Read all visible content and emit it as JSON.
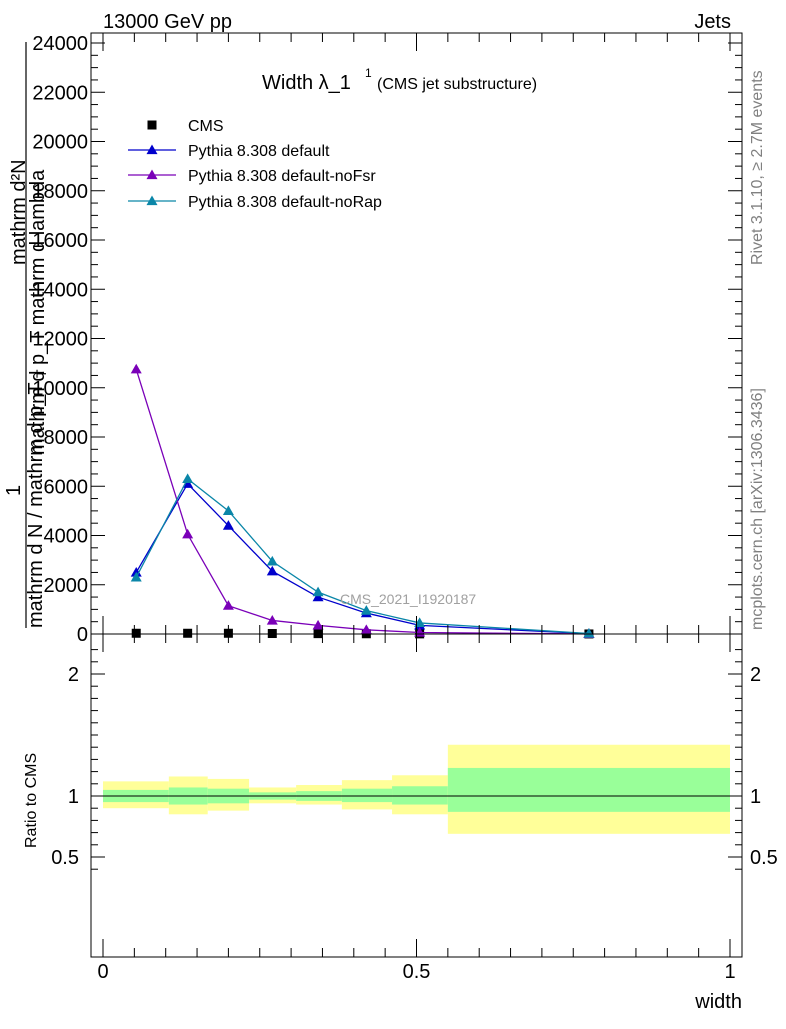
{
  "header": {
    "left": "13000 GeV pp",
    "right": "Jets"
  },
  "side_labels": {
    "rivet": "Rivet 3.1.10, ≥ 2.7M events",
    "mcplots": "mcplots.cern.ch [arXiv:1306.3436]"
  },
  "chart_data": [
    {
      "type": "line",
      "title_main": "Width λ_1",
      "title_sup": "1",
      "title_sub": "(CMS jet substructure)",
      "watermark": "CMS_2021_I1920187",
      "ylabel_top": "mathrm d²N",
      "ylabel_top2": "mathrm d p_T mathrm d lambda",
      "ylabel_frac_num": "1",
      "ylabel_frac_den": "mathrm d N / mathrm d p_T",
      "ylabel_sub": "T",
      "xlim": [
        0,
        1
      ],
      "ylim": [
        0,
        24000
      ],
      "yticks": [
        {
          "v": 0,
          "label": "0"
        },
        {
          "v": 2000,
          "label": "2000"
        },
        {
          "v": 4000,
          "label": "4000"
        },
        {
          "v": 6000,
          "label": "6000"
        },
        {
          "v": 8000,
          "label": "8000"
        },
        {
          "v": 10000,
          "label": "10000"
        },
        {
          "v": 12000,
          "label": "12000"
        },
        {
          "v": 14000,
          "label": "14000"
        },
        {
          "v": 16000,
          "label": "16000"
        },
        {
          "v": 18000,
          "label": "18000"
        },
        {
          "v": 20000,
          "label": "20000"
        },
        {
          "v": 22000,
          "label": "22000"
        },
        {
          "v": 24000,
          "label": "24000"
        }
      ],
      "legend_position": "top-left",
      "series": [
        {
          "name": "CMS",
          "marker": "square",
          "color": "#000000",
          "line": false,
          "x": [
            0.053,
            0.135,
            0.2,
            0.27,
            0.343,
            0.42,
            0.505,
            0.775
          ],
          "y": [
            30,
            30,
            30,
            20,
            15,
            10,
            5,
            2
          ]
        },
        {
          "name": "Pythia 8.308 default",
          "marker": "triangle",
          "color": "#0000cc",
          "line": true,
          "x": [
            0.053,
            0.135,
            0.2,
            0.27,
            0.343,
            0.42,
            0.505,
            0.775
          ],
          "y": [
            2500,
            6100,
            4400,
            2550,
            1500,
            850,
            350,
            15
          ]
        },
        {
          "name": "Pythia 8.308 default-noFsr",
          "marker": "triangle",
          "color": "#7a00b8",
          "line": true,
          "x": [
            0.053,
            0.135,
            0.2,
            0.27,
            0.343,
            0.42,
            0.505,
            0.775
          ],
          "y": [
            10750,
            4050,
            1150,
            550,
            350,
            170,
            60,
            3
          ]
        },
        {
          "name": "Pythia 8.308 default-noRap",
          "marker": "triangle",
          "color": "#0a86a8",
          "line": true,
          "x": [
            0.053,
            0.135,
            0.2,
            0.27,
            0.343,
            0.42,
            0.505,
            0.775
          ],
          "y": [
            2300,
            6300,
            5000,
            2950,
            1700,
            950,
            450,
            20
          ]
        }
      ]
    },
    {
      "type": "area",
      "ylabel": "Ratio to CMS",
      "xlabel": "width",
      "xlim": [
        0,
        1
      ],
      "ylim": [
        0.35,
        2.25
      ],
      "xticks": [
        {
          "v": 0,
          "label": "0"
        },
        {
          "v": 0.5,
          "label": "0.5"
        },
        {
          "v": 1,
          "label": "1"
        }
      ],
      "yticks": [
        {
          "v": 0.5,
          "label": "0.5"
        },
        {
          "v": 1,
          "label": "1"
        },
        {
          "v": 2,
          "label": "2"
        }
      ],
      "bins": [
        {
          "x0": 0.0,
          "x1": 0.105,
          "stat": [
            0.95,
            1.05
          ],
          "total": [
            0.9,
            1.12
          ]
        },
        {
          "x0": 0.105,
          "x1": 0.167,
          "stat": [
            0.93,
            1.07
          ],
          "total": [
            0.85,
            1.16
          ]
        },
        {
          "x0": 0.167,
          "x1": 0.233,
          "stat": [
            0.94,
            1.06
          ],
          "total": [
            0.88,
            1.14
          ]
        },
        {
          "x0": 0.233,
          "x1": 0.308,
          "stat": [
            0.97,
            1.03
          ],
          "total": [
            0.94,
            1.07
          ]
        },
        {
          "x0": 0.308,
          "x1": 0.381,
          "stat": [
            0.96,
            1.04
          ],
          "total": [
            0.93,
            1.09
          ]
        },
        {
          "x0": 0.381,
          "x1": 0.461,
          "stat": [
            0.95,
            1.06
          ],
          "total": [
            0.89,
            1.13
          ]
        },
        {
          "x0": 0.461,
          "x1": 0.55,
          "stat": [
            0.93,
            1.08
          ],
          "total": [
            0.85,
            1.17
          ]
        },
        {
          "x0": 0.55,
          "x1": 1.0,
          "stat": [
            0.87,
            1.23
          ],
          "total": [
            0.69,
            1.42
          ]
        }
      ],
      "stat_color": "#99ff99",
      "total_color": "#ffff99"
    }
  ]
}
